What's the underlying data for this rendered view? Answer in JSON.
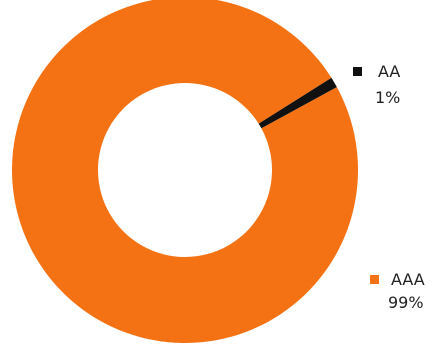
{
  "chart_data": {
    "type": "pie",
    "donut": true,
    "legend_placement": "right",
    "slices": [
      {
        "label": "AA",
        "value": 1,
        "display": "1%",
        "color": "#111111"
      },
      {
        "label": "AAA",
        "value": 99,
        "display": "99%",
        "color": "#F57214"
      }
    ]
  }
}
